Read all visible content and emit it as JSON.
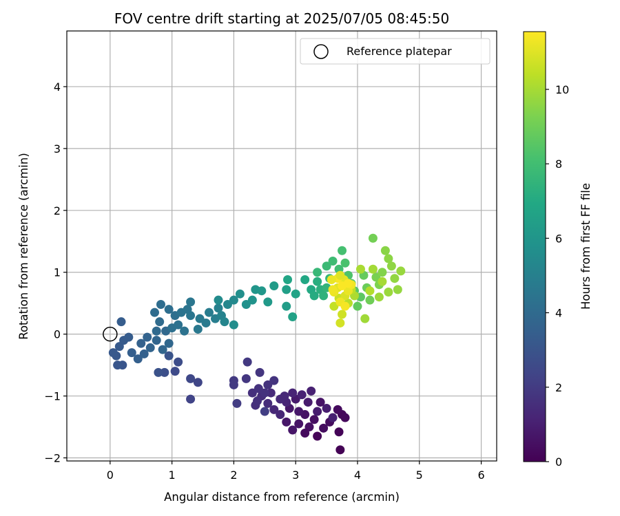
{
  "chart_data": {
    "type": "scatter",
    "title": "FOV centre drift starting at 2025/07/05 08:45:50",
    "xlabel": "Angular distance from reference (arcmin)",
    "ylabel": "Rotation from reference (arcmin)",
    "xlim": [
      -0.7,
      6.25
    ],
    "ylim": [
      -2.05,
      4.9
    ],
    "xticks": [
      0,
      1,
      2,
      3,
      4,
      5,
      6
    ],
    "yticks": [
      -2,
      -1,
      0,
      1,
      2,
      3,
      4
    ],
    "grid": true,
    "legend": {
      "position": "top-right",
      "entries": [
        "Reference platepar"
      ]
    },
    "reference_point": {
      "x": 0,
      "y": 0
    },
    "colorbar": {
      "label": "Hours from first FF file",
      "min": 0,
      "max": 11.55,
      "ticks": [
        0,
        2,
        4,
        6,
        8,
        10
      ],
      "colormap": "viridis"
    },
    "series": [
      {
        "points": [
          {
            "x": 3.72,
            "y": -1.87,
            "c": 0.05
          },
          {
            "x": 3.35,
            "y": -1.65,
            "c": 0.15
          },
          {
            "x": 3.7,
            "y": -1.58,
            "c": 0.1
          },
          {
            "x": 3.75,
            "y": -1.3,
            "c": 0.2
          },
          {
            "x": 3.8,
            "y": -1.35,
            "c": 0.25
          },
          {
            "x": 3.68,
            "y": -1.22,
            "c": 0.3
          },
          {
            "x": 3.55,
            "y": -1.42,
            "c": 0.35
          },
          {
            "x": 3.45,
            "y": -1.52,
            "c": 0.4
          },
          {
            "x": 3.3,
            "y": -1.38,
            "c": 0.45
          },
          {
            "x": 3.22,
            "y": -1.5,
            "c": 0.5
          },
          {
            "x": 3.15,
            "y": -1.3,
            "c": 0.55
          },
          {
            "x": 3.05,
            "y": -1.45,
            "c": 0.6
          },
          {
            "x": 2.95,
            "y": -1.55,
            "c": 0.65
          },
          {
            "x": 2.85,
            "y": -1.42,
            "c": 0.7
          },
          {
            "x": 2.9,
            "y": -1.2,
            "c": 0.75
          },
          {
            "x": 3.0,
            "y": -1.05,
            "c": 0.8
          },
          {
            "x": 3.2,
            "y": -1.1,
            "c": 0.85
          },
          {
            "x": 3.35,
            "y": -1.25,
            "c": 0.9
          },
          {
            "x": 3.5,
            "y": -1.2,
            "c": 0.95
          },
          {
            "x": 3.6,
            "y": -1.35,
            "c": 1.0
          },
          {
            "x": 3.25,
            "y": -0.92,
            "c": 1.05
          },
          {
            "x": 3.1,
            "y": -0.98,
            "c": 1.1
          },
          {
            "x": 2.95,
            "y": -0.95,
            "c": 1.15
          },
          {
            "x": 2.85,
            "y": -1.1,
            "c": 1.2
          },
          {
            "x": 2.75,
            "y": -1.3,
            "c": 1.25
          },
          {
            "x": 2.65,
            "y": -1.22,
            "c": 1.3
          },
          {
            "x": 2.75,
            "y": -1.05,
            "c": 1.35
          },
          {
            "x": 2.6,
            "y": -0.95,
            "c": 1.4
          },
          {
            "x": 2.55,
            "y": -1.12,
            "c": 1.45
          },
          {
            "x": 2.45,
            "y": -1.0,
            "c": 1.5
          },
          {
            "x": 2.35,
            "y": -1.15,
            "c": 1.55
          },
          {
            "x": 2.3,
            "y": -0.95,
            "c": 1.6
          },
          {
            "x": 2.4,
            "y": -0.88,
            "c": 1.65
          },
          {
            "x": 2.55,
            "y": -0.82,
            "c": 1.7
          },
          {
            "x": 2.65,
            "y": -0.75,
            "c": 1.75
          },
          {
            "x": 2.42,
            "y": -0.62,
            "c": 1.8
          },
          {
            "x": 2.2,
            "y": -0.72,
            "c": 1.85
          },
          {
            "x": 2.22,
            "y": -0.45,
            "c": 1.9
          },
          {
            "x": 2.0,
            "y": -0.75,
            "c": 1.95
          },
          {
            "x": 2.0,
            "y": -0.82,
            "c": 2.0
          },
          {
            "x": 2.05,
            "y": -1.12,
            "c": 2.05
          },
          {
            "x": 2.5,
            "y": -1.25,
            "c": 2.1
          },
          {
            "x": 2.82,
            "y": -1.0,
            "c": 1.3
          },
          {
            "x": 3.05,
            "y": -1.25,
            "c": 0.7
          },
          {
            "x": 3.4,
            "y": -1.1,
            "c": 0.6
          },
          {
            "x": 3.15,
            "y": -1.6,
            "c": 0.3
          },
          {
            "x": 2.38,
            "y": -1.08,
            "c": 1.6
          },
          {
            "x": 2.5,
            "y": -0.95,
            "c": 1.65
          },
          {
            "x": 1.3,
            "y": -1.05,
            "c": 2.3
          },
          {
            "x": 1.42,
            "y": -0.78,
            "c": 2.4
          },
          {
            "x": 1.3,
            "y": -0.72,
            "c": 2.5
          },
          {
            "x": 1.05,
            "y": -0.6,
            "c": 2.6
          },
          {
            "x": 1.1,
            "y": -0.45,
            "c": 2.7
          },
          {
            "x": 0.88,
            "y": -0.62,
            "c": 2.8
          },
          {
            "x": 0.78,
            "y": -0.62,
            "c": 2.9
          },
          {
            "x": 0.95,
            "y": -0.35,
            "c": 3.0
          },
          {
            "x": 0.2,
            "y": -0.5,
            "c": 3.05
          },
          {
            "x": 0.12,
            "y": -0.5,
            "c": 3.1
          },
          {
            "x": 0.1,
            "y": -0.35,
            "c": 3.15
          },
          {
            "x": 0.05,
            "y": -0.3,
            "c": 3.2
          },
          {
            "x": 0.15,
            "y": -0.2,
            "c": 3.25
          },
          {
            "x": 0.22,
            "y": -0.1,
            "c": 3.3
          },
          {
            "x": 0.3,
            "y": -0.05,
            "c": 3.35
          },
          {
            "x": 0.18,
            "y": 0.2,
            "c": 3.4
          },
          {
            "x": 0.35,
            "y": -0.3,
            "c": 3.45
          },
          {
            "x": 0.45,
            "y": -0.4,
            "c": 3.5
          },
          {
            "x": 0.55,
            "y": -0.32,
            "c": 3.55
          },
          {
            "x": 0.5,
            "y": -0.15,
            "c": 3.6
          },
          {
            "x": 0.6,
            "y": -0.05,
            "c": 3.65
          },
          {
            "x": 0.65,
            "y": -0.22,
            "c": 3.7
          },
          {
            "x": 0.75,
            "y": -0.1,
            "c": 3.75
          },
          {
            "x": 0.85,
            "y": -0.25,
            "c": 3.8
          },
          {
            "x": 0.95,
            "y": -0.15,
            "c": 3.85
          },
          {
            "x": 0.9,
            "y": 0.05,
            "c": 3.9
          },
          {
            "x": 0.75,
            "y": 0.05,
            "c": 3.95
          },
          {
            "x": 0.8,
            "y": 0.2,
            "c": 4.0
          },
          {
            "x": 0.72,
            "y": 0.35,
            "c": 4.05
          },
          {
            "x": 0.82,
            "y": 0.48,
            "c": 4.1
          },
          {
            "x": 0.95,
            "y": 0.4,
            "c": 4.15
          },
          {
            "x": 1.05,
            "y": 0.3,
            "c": 4.2
          },
          {
            "x": 1.0,
            "y": 0.1,
            "c": 4.25
          },
          {
            "x": 1.1,
            "y": 0.15,
            "c": 4.3
          },
          {
            "x": 1.2,
            "y": 0.05,
            "c": 4.35
          },
          {
            "x": 1.15,
            "y": 0.35,
            "c": 4.4
          },
          {
            "x": 1.25,
            "y": 0.4,
            "c": 4.45
          },
          {
            "x": 1.3,
            "y": 0.3,
            "c": 4.5
          },
          {
            "x": 1.3,
            "y": 0.52,
            "c": 4.55
          },
          {
            "x": 1.42,
            "y": 0.08,
            "c": 4.6
          },
          {
            "x": 1.45,
            "y": 0.25,
            "c": 4.65
          },
          {
            "x": 1.55,
            "y": 0.18,
            "c": 4.7
          },
          {
            "x": 1.6,
            "y": 0.35,
            "c": 4.8
          },
          {
            "x": 1.7,
            "y": 0.25,
            "c": 4.9
          },
          {
            "x": 1.75,
            "y": 0.42,
            "c": 5.0
          },
          {
            "x": 1.8,
            "y": 0.3,
            "c": 5.1
          },
          {
            "x": 1.85,
            "y": 0.2,
            "c": 5.2
          },
          {
            "x": 1.9,
            "y": 0.48,
            "c": 5.3
          },
          {
            "x": 2.0,
            "y": 0.55,
            "c": 5.4
          },
          {
            "x": 1.75,
            "y": 0.55,
            "c": 5.5
          },
          {
            "x": 2.0,
            "y": 0.15,
            "c": 5.6
          },
          {
            "x": 2.1,
            "y": 0.65,
            "c": 5.7
          },
          {
            "x": 2.2,
            "y": 0.48,
            "c": 5.8
          },
          {
            "x": 2.3,
            "y": 0.55,
            "c": 5.9
          },
          {
            "x": 2.35,
            "y": 0.72,
            "c": 6.0
          },
          {
            "x": 2.45,
            "y": 0.7,
            "c": 6.1
          },
          {
            "x": 2.55,
            "y": 0.52,
            "c": 6.2
          },
          {
            "x": 2.65,
            "y": 0.78,
            "c": 6.3
          },
          {
            "x": 2.85,
            "y": 0.45,
            "c": 6.4
          },
          {
            "x": 2.85,
            "y": 0.72,
            "c": 6.5
          },
          {
            "x": 2.95,
            "y": 0.28,
            "c": 6.6
          },
          {
            "x": 3.0,
            "y": 0.65,
            "c": 6.7
          },
          {
            "x": 2.87,
            "y": 0.88,
            "c": 6.8
          },
          {
            "x": 3.15,
            "y": 0.88,
            "c": 6.9
          },
          {
            "x": 3.25,
            "y": 0.72,
            "c": 7.0
          },
          {
            "x": 3.3,
            "y": 0.62,
            "c": 7.1
          },
          {
            "x": 3.35,
            "y": 0.85,
            "c": 7.2
          },
          {
            "x": 3.4,
            "y": 0.72,
            "c": 7.3
          },
          {
            "x": 3.45,
            "y": 0.62,
            "c": 7.4
          },
          {
            "x": 3.5,
            "y": 0.75,
            "c": 7.5
          },
          {
            "x": 3.55,
            "y": 0.9,
            "c": 7.6
          },
          {
            "x": 3.35,
            "y": 1.0,
            "c": 7.7
          },
          {
            "x": 3.5,
            "y": 1.1,
            "c": 7.8
          },
          {
            "x": 3.6,
            "y": 1.18,
            "c": 7.9
          },
          {
            "x": 3.7,
            "y": 1.05,
            "c": 8.0
          },
          {
            "x": 3.75,
            "y": 1.35,
            "c": 8.1
          },
          {
            "x": 3.8,
            "y": 1.15,
            "c": 8.2
          },
          {
            "x": 3.85,
            "y": 0.95,
            "c": 8.3
          },
          {
            "x": 3.9,
            "y": 0.82,
            "c": 8.4
          },
          {
            "x": 3.95,
            "y": 0.7,
            "c": 8.5
          },
          {
            "x": 4.05,
            "y": 0.6,
            "c": 8.6
          },
          {
            "x": 4.0,
            "y": 0.45,
            "c": 8.7
          },
          {
            "x": 4.1,
            "y": 0.95,
            "c": 8.8
          },
          {
            "x": 4.15,
            "y": 0.75,
            "c": 8.9
          },
          {
            "x": 4.2,
            "y": 0.55,
            "c": 9.0
          },
          {
            "x": 4.25,
            "y": 1.55,
            "c": 9.1
          },
          {
            "x": 4.3,
            "y": 0.92,
            "c": 9.2
          },
          {
            "x": 4.35,
            "y": 0.8,
            "c": 9.3
          },
          {
            "x": 4.4,
            "y": 1.0,
            "c": 9.4
          },
          {
            "x": 4.45,
            "y": 1.35,
            "c": 9.5
          },
          {
            "x": 4.5,
            "y": 1.22,
            "c": 9.55
          },
          {
            "x": 4.55,
            "y": 1.1,
            "c": 9.6
          },
          {
            "x": 4.6,
            "y": 0.9,
            "c": 9.65
          },
          {
            "x": 4.65,
            "y": 0.72,
            "c": 9.7
          },
          {
            "x": 4.7,
            "y": 1.02,
            "c": 9.75
          },
          {
            "x": 4.5,
            "y": 0.68,
            "c": 9.8
          },
          {
            "x": 4.35,
            "y": 0.6,
            "c": 9.85
          },
          {
            "x": 4.12,
            "y": 0.25,
            "c": 9.9
          },
          {
            "x": 4.25,
            "y": 1.05,
            "c": 9.95
          },
          {
            "x": 4.4,
            "y": 0.85,
            "c": 10.0
          },
          {
            "x": 4.05,
            "y": 1.05,
            "c": 10.05
          },
          {
            "x": 3.95,
            "y": 0.62,
            "c": 10.1
          },
          {
            "x": 4.2,
            "y": 0.7,
            "c": 10.2
          },
          {
            "x": 3.85,
            "y": 0.5,
            "c": 10.3
          },
          {
            "x": 3.9,
            "y": 0.72,
            "c": 10.4
          },
          {
            "x": 3.62,
            "y": 0.45,
            "c": 10.5
          },
          {
            "x": 3.7,
            "y": 0.58,
            "c": 10.6
          },
          {
            "x": 3.75,
            "y": 0.32,
            "c": 10.7
          },
          {
            "x": 3.72,
            "y": 0.18,
            "c": 10.8
          },
          {
            "x": 3.8,
            "y": 0.62,
            "c": 10.9
          },
          {
            "x": 3.68,
            "y": 0.75,
            "c": 11.0
          },
          {
            "x": 3.78,
            "y": 0.88,
            "c": 11.1
          },
          {
            "x": 3.85,
            "y": 0.7,
            "c": 11.2
          },
          {
            "x": 3.62,
            "y": 0.68,
            "c": 11.25
          },
          {
            "x": 3.72,
            "y": 0.52,
            "c": 11.3
          },
          {
            "x": 3.9,
            "y": 0.8,
            "c": 11.35
          },
          {
            "x": 3.8,
            "y": 0.45,
            "c": 11.4
          },
          {
            "x": 3.68,
            "y": 0.9,
            "c": 11.45
          },
          {
            "x": 3.75,
            "y": 0.78,
            "c": 11.5
          },
          {
            "x": 3.85,
            "y": 0.82,
            "c": 11.5
          },
          {
            "x": 3.6,
            "y": 0.72,
            "c": 11.3
          },
          {
            "x": 3.58,
            "y": 0.88,
            "c": 11.2
          },
          {
            "x": 3.72,
            "y": 0.95,
            "c": 11.0
          }
        ]
      }
    ]
  }
}
